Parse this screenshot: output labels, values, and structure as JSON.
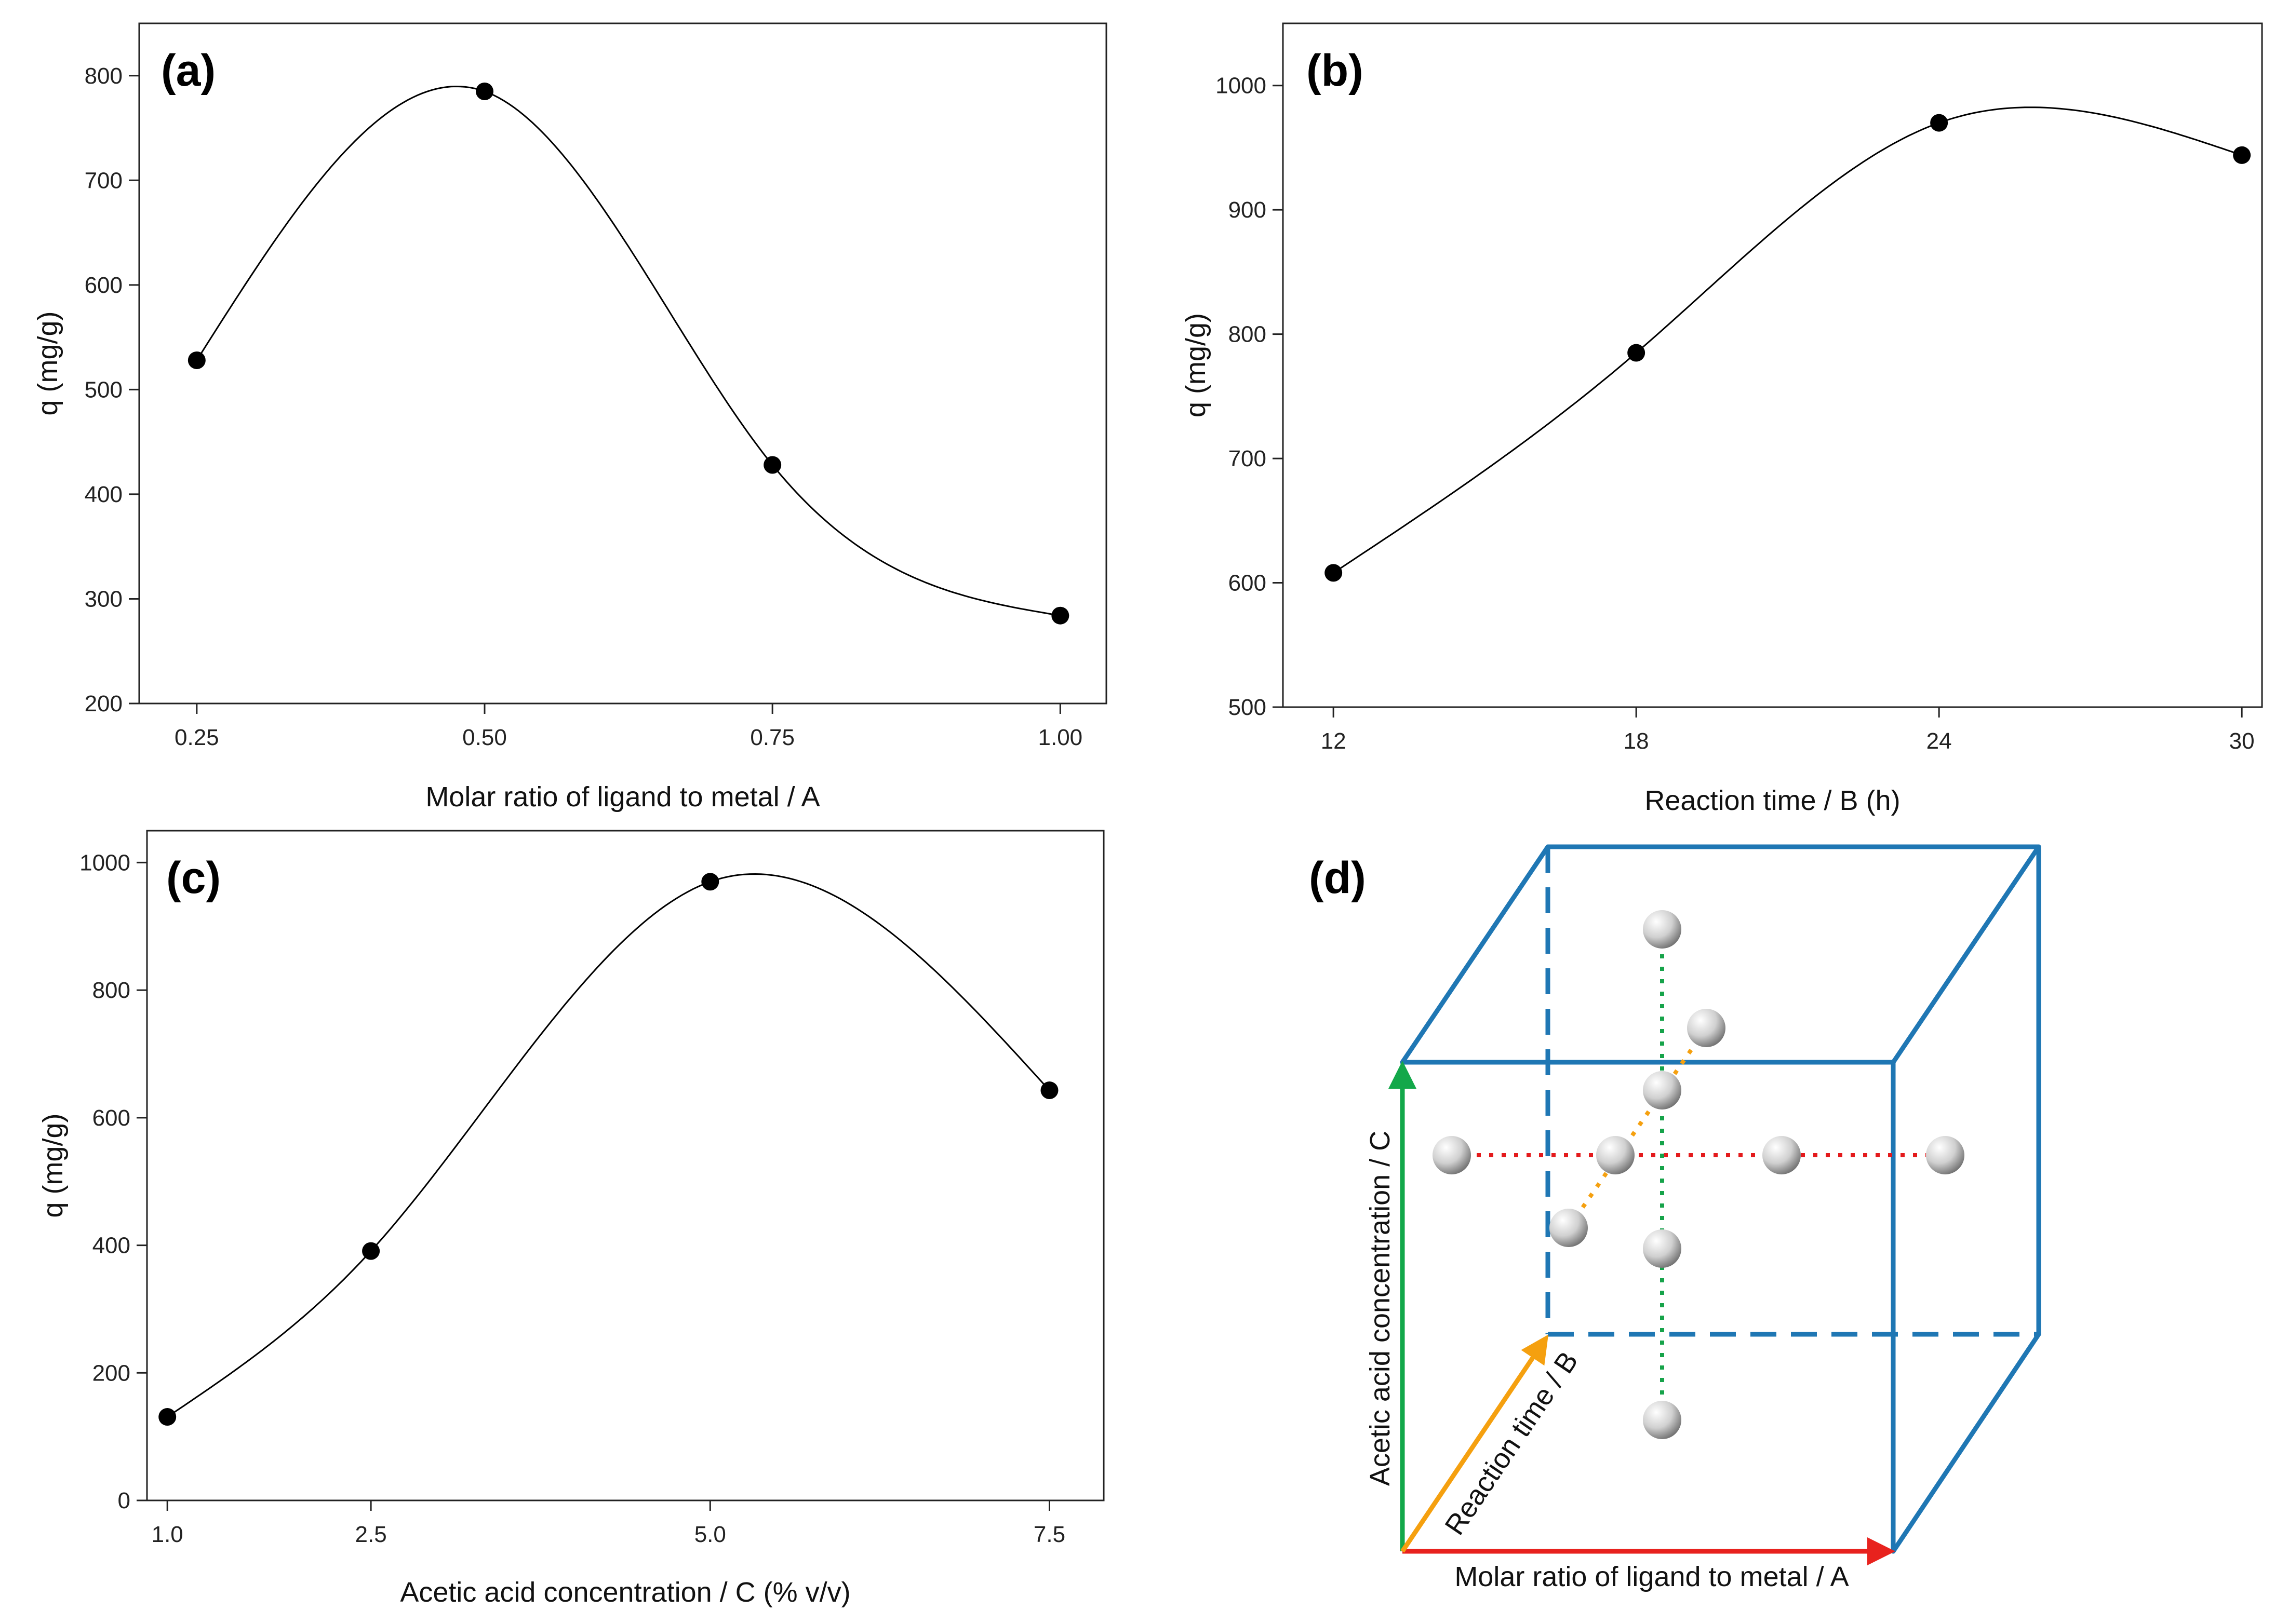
{
  "chart_data": [
    {
      "id": "a",
      "type": "line",
      "panel_label": "(a)",
      "xlabel": "Molar ratio of ligand to metal / A",
      "ylabel": "q (mg/g)",
      "x": [
        0.25,
        0.5,
        0.75,
        1.0
      ],
      "xtick_labels": [
        "0.25",
        "0.50",
        "0.75",
        "1.00"
      ],
      "values": [
        528,
        785,
        428,
        284
      ],
      "xlim": [
        0.2,
        1.04
      ],
      "ylim": [
        200,
        850
      ],
      "yticks": [
        200,
        300,
        400,
        500,
        600,
        700,
        800
      ],
      "ytick_labels": [
        "200",
        "300",
        "400",
        "500",
        "600",
        "700",
        "800"
      ],
      "smooth": true
    },
    {
      "id": "b",
      "type": "line",
      "panel_label": "(b)",
      "xlabel": "Reaction time / B (h)",
      "ylabel": "q (mg/g)",
      "x": [
        12,
        18,
        24,
        30
      ],
      "xtick_labels": [
        "12",
        "18",
        "24",
        "30"
      ],
      "values": [
        608,
        785,
        970,
        944
      ],
      "xlim": [
        11,
        30.4
      ],
      "ylim": [
        500,
        1050
      ],
      "yticks": [
        500,
        600,
        700,
        800,
        900,
        1000
      ],
      "ytick_labels": [
        "500",
        "600",
        "700",
        "800",
        "900",
        "1000"
      ],
      "smooth": true
    },
    {
      "id": "c",
      "type": "line",
      "panel_label": "(c)",
      "xlabel": "Acetic acid concentration / C (% v/v)",
      "ylabel": "q (mg/g)",
      "x": [
        1.0,
        2.5,
        5.0,
        7.5
      ],
      "xtick_labels": [
        "1.0",
        "2.5",
        "5.0",
        "7.5"
      ],
      "values": [
        131,
        391,
        970,
        643
      ],
      "xlim": [
        0.85,
        7.9
      ],
      "ylim": [
        0,
        1050
      ],
      "yticks": [
        0,
        200,
        400,
        600,
        800,
        1000
      ],
      "ytick_labels": [
        "0",
        "200",
        "400",
        "600",
        "800",
        "1000"
      ],
      "smooth": true
    }
  ],
  "diagram_d": {
    "panel_label": "(d)",
    "axis_a_label": "Molar ratio of ligand to metal / A",
    "axis_b_label": "Reaction time / B",
    "axis_c_label": "Acetic acid concentration / C",
    "colors": {
      "cube": "#1f77b4",
      "axis_a": "#e8221e",
      "axis_b": "#f5a00f",
      "axis_c": "#13a84a",
      "dot_a": "#e41a1c",
      "dot_b": "#f5a00f",
      "dot_c": "#16a34a"
    }
  }
}
